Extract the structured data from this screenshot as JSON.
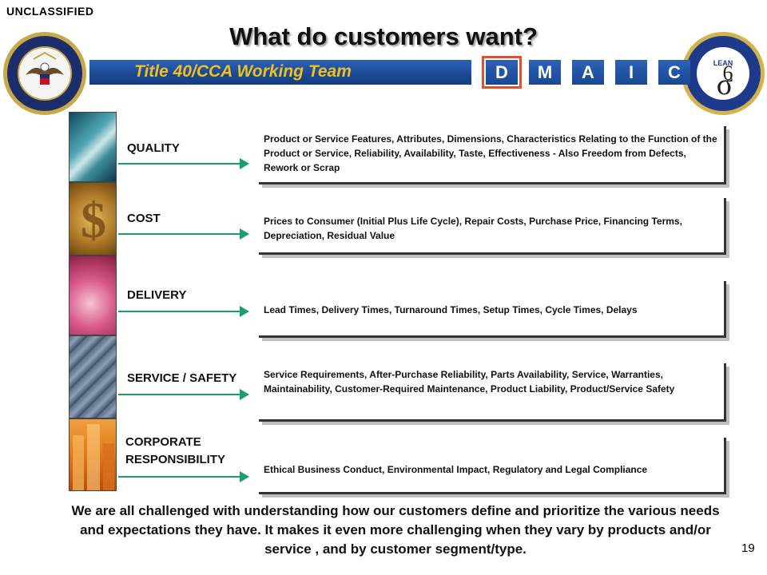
{
  "classification": "UNCLASSIFIED",
  "title": "What do customers want?",
  "banner": "Title 40/CCA Working Team",
  "phases": [
    {
      "label": "D",
      "active": true
    },
    {
      "label": "M",
      "active": false
    },
    {
      "label": "A",
      "active": false
    },
    {
      "label": "I",
      "active": false
    },
    {
      "label": "C",
      "active": false
    }
  ],
  "categories": [
    {
      "label": "QUALITY",
      "description": "Product or Service Features, Attributes, Dimensions, Characteristics Relating to the Function of the Product or Service, Reliability, Availability, Taste, Effectiveness - Also Freedom from Defects, Rework or Scrap"
    },
    {
      "label": "COST",
      "description": "Prices to Consumer (Initial Plus Life Cycle), Repair Costs, Purchase Price, Financing Terms, Depreciation, Residual Value"
    },
    {
      "label": "DELIVERY",
      "description": "Lead Times, Delivery Times, Turnaround Times, Setup Times, Cycle Times, Delays"
    },
    {
      "label": "SERVICE / SAFETY",
      "description": "Service Requirements, After-Purchase Reliability, Parts Availability, Service, Warranties, Maintainability, Customer-Required Maintenance, Product Liability, Product/Service Safety"
    },
    {
      "label": "CORPORATE RESPONSIBILITY",
      "description": "Ethical Business Conduct, Environmental Impact, Regulatory and Legal Compliance"
    }
  ],
  "footer": "We are all challenged with understanding how our customers define and prioritize the various needs and expectations they have.  It makes it even more challenging when they vary by products and/or service , and by customer segment/type.",
  "page_number": "19",
  "seal_left": {
    "text": "DEPARTMENT OF DEFENSE · UNITED STATES OF AMERICA"
  },
  "seal_right": {
    "text": "DEPARTMENT OF DEFENSE · LEAN SIX SIGMA PROGRAM OFFICE",
    "center": "LEAN"
  },
  "colors": {
    "banner": "#1f4e9c",
    "banner_text": "#f0c020",
    "arrow": "#18a06a",
    "active_phase_outline": "#e0502a"
  }
}
